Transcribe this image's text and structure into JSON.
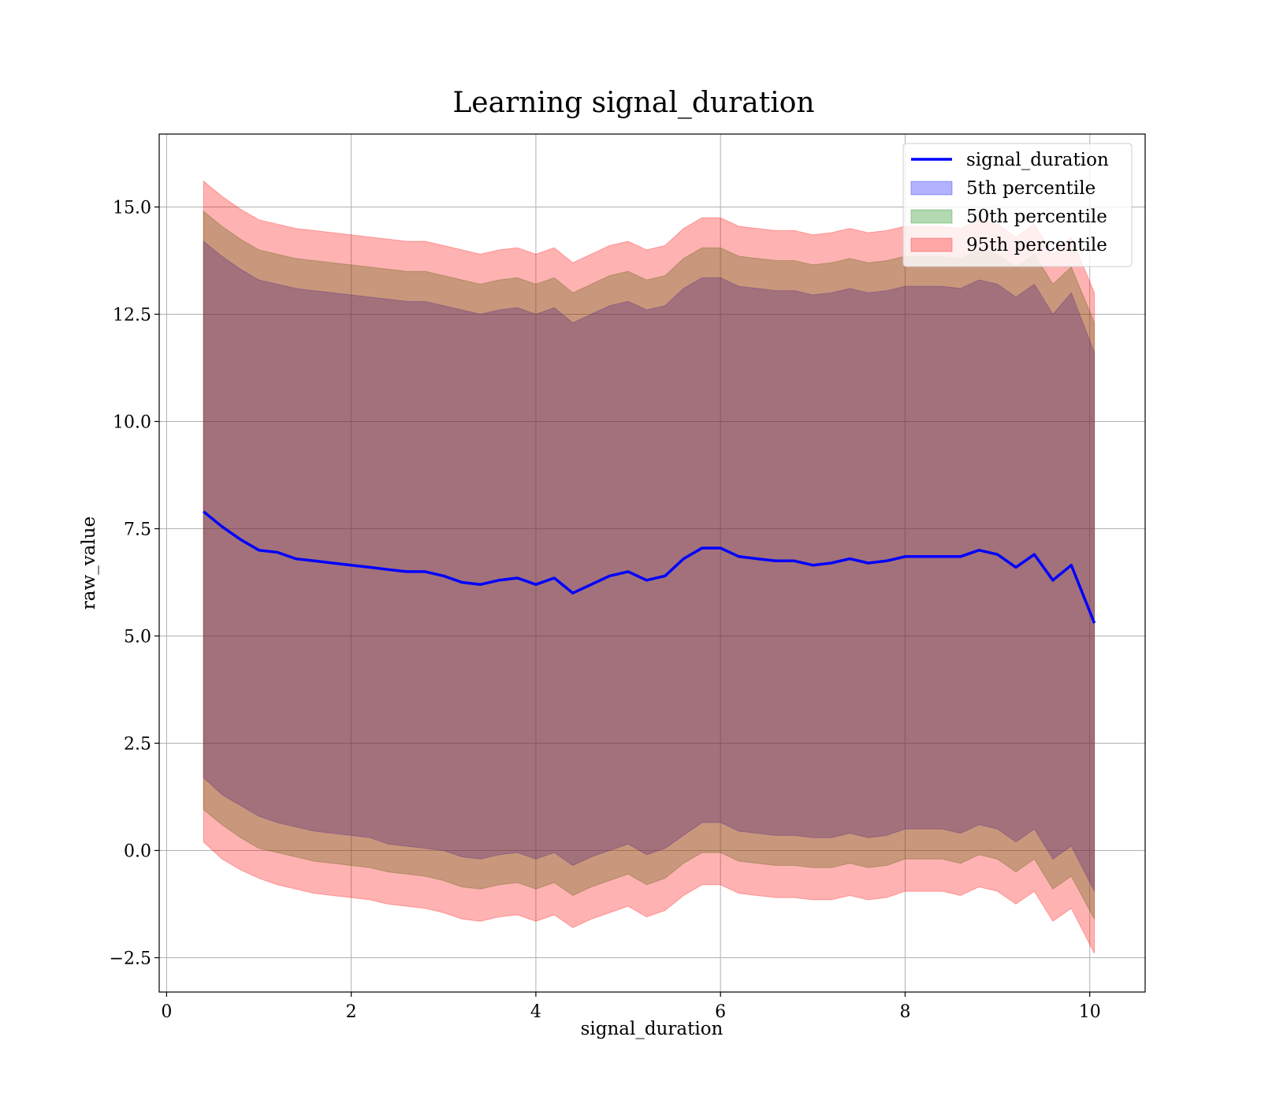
{
  "chart_data": {
    "type": "area",
    "title": "Learning signal_duration",
    "xlabel": "signal_duration",
    "ylabel": "raw_value",
    "xlim": [
      -0.08,
      10.6
    ],
    "ylim": [
      -3.3,
      16.7
    ],
    "grid": true,
    "legend_position": "top-right",
    "x_ticks": [
      {
        "value": 0,
        "label": "0"
      },
      {
        "value": 2,
        "label": "2"
      },
      {
        "value": 4,
        "label": "4"
      },
      {
        "value": 6,
        "label": "6"
      },
      {
        "value": 8,
        "label": "8"
      },
      {
        "value": 10,
        "label": "10"
      }
    ],
    "y_ticks": [
      {
        "value": -2.5,
        "label": "−2.5"
      },
      {
        "value": 0,
        "label": "0.0"
      },
      {
        "value": 2.5,
        "label": "2.5"
      },
      {
        "value": 5,
        "label": "5.0"
      },
      {
        "value": 7.5,
        "label": "7.5"
      },
      {
        "value": 10,
        "label": "10.0"
      },
      {
        "value": 12.5,
        "label": "12.5"
      },
      {
        "value": 15,
        "label": "15.0"
      }
    ],
    "x": [
      0.4,
      0.6,
      0.8,
      1.0,
      1.2,
      1.4,
      1.6,
      1.8,
      2.0,
      2.2,
      2.4,
      2.6,
      2.8,
      3.0,
      3.2,
      3.4,
      3.6,
      3.8,
      4.0,
      4.2,
      4.4,
      4.6,
      4.8,
      5.0,
      5.2,
      5.4,
      5.6,
      5.8,
      6.0,
      6.2,
      6.4,
      6.6,
      6.8,
      7.0,
      7.2,
      7.4,
      7.6,
      7.8,
      8.0,
      8.2,
      8.4,
      8.6,
      8.8,
      9.0,
      9.2,
      9.4,
      9.6,
      9.8,
      10.05
    ],
    "series": [
      {
        "name": "signal_duration",
        "kind": "line",
        "color": "#0000ff",
        "values": [
          7.9,
          7.55,
          7.25,
          7.0,
          6.95,
          6.8,
          6.75,
          6.7,
          6.65,
          6.6,
          6.55,
          6.5,
          6.5,
          6.4,
          6.25,
          6.2,
          6.3,
          6.35,
          6.2,
          6.35,
          6.0,
          6.2,
          6.4,
          6.5,
          6.3,
          6.4,
          6.8,
          7.05,
          7.05,
          6.85,
          6.8,
          6.75,
          6.75,
          6.65,
          6.7,
          6.8,
          6.7,
          6.75,
          6.85,
          6.85,
          6.85,
          6.85,
          7.0,
          6.9,
          6.6,
          6.9,
          6.3,
          6.65,
          5.3
        ]
      },
      {
        "name": "5th percentile",
        "kind": "band",
        "color": "#0000ff",
        "lower": [
          1.7,
          1.3,
          1.05,
          0.8,
          0.65,
          0.55,
          0.45,
          0.4,
          0.35,
          0.3,
          0.15,
          0.1,
          0.05,
          0.0,
          -0.15,
          -0.2,
          -0.1,
          -0.05,
          -0.2,
          -0.05,
          -0.35,
          -0.15,
          0.0,
          0.15,
          -0.1,
          0.05,
          0.35,
          0.65,
          0.65,
          0.45,
          0.4,
          0.35,
          0.35,
          0.3,
          0.3,
          0.4,
          0.3,
          0.35,
          0.5,
          0.5,
          0.5,
          0.4,
          0.6,
          0.5,
          0.2,
          0.5,
          -0.2,
          0.1,
          -0.95
        ],
        "upper": [
          14.2,
          13.85,
          13.55,
          13.3,
          13.2,
          13.1,
          13.05,
          13.0,
          12.95,
          12.9,
          12.85,
          12.8,
          12.8,
          12.7,
          12.6,
          12.5,
          12.6,
          12.65,
          12.5,
          12.65,
          12.3,
          12.5,
          12.7,
          12.8,
          12.6,
          12.7,
          13.1,
          13.35,
          13.35,
          13.15,
          13.1,
          13.05,
          13.05,
          12.95,
          13.0,
          13.1,
          13.0,
          13.05,
          13.15,
          13.15,
          13.15,
          13.1,
          13.3,
          13.2,
          12.9,
          13.2,
          12.5,
          13.0,
          11.6
        ]
      },
      {
        "name": "50th percentile",
        "kind": "band",
        "color": "#008000",
        "lower": [
          0.95,
          0.6,
          0.3,
          0.05,
          -0.05,
          -0.15,
          -0.25,
          -0.3,
          -0.35,
          -0.4,
          -0.5,
          -0.55,
          -0.6,
          -0.7,
          -0.85,
          -0.9,
          -0.8,
          -0.75,
          -0.9,
          -0.75,
          -1.05,
          -0.85,
          -0.7,
          -0.55,
          -0.8,
          -0.65,
          -0.3,
          -0.05,
          -0.05,
          -0.25,
          -0.3,
          -0.35,
          -0.35,
          -0.4,
          -0.4,
          -0.3,
          -0.4,
          -0.35,
          -0.2,
          -0.2,
          -0.2,
          -0.3,
          -0.1,
          -0.2,
          -0.5,
          -0.2,
          -0.9,
          -0.6,
          -1.6
        ],
        "upper": [
          14.9,
          14.55,
          14.25,
          14.0,
          13.9,
          13.8,
          13.75,
          13.7,
          13.65,
          13.6,
          13.55,
          13.5,
          13.5,
          13.4,
          13.3,
          13.2,
          13.3,
          13.35,
          13.2,
          13.35,
          13.0,
          13.2,
          13.4,
          13.5,
          13.3,
          13.4,
          13.8,
          14.05,
          14.05,
          13.85,
          13.8,
          13.75,
          13.75,
          13.65,
          13.7,
          13.8,
          13.7,
          13.75,
          13.85,
          13.85,
          13.85,
          13.8,
          14.0,
          13.9,
          13.6,
          13.9,
          13.2,
          13.6,
          12.3
        ]
      },
      {
        "name": "95th percentile",
        "kind": "band",
        "color": "#ff0000",
        "lower": [
          0.2,
          -0.2,
          -0.45,
          -0.65,
          -0.8,
          -0.9,
          -1.0,
          -1.05,
          -1.1,
          -1.15,
          -1.25,
          -1.3,
          -1.35,
          -1.45,
          -1.6,
          -1.65,
          -1.55,
          -1.5,
          -1.65,
          -1.5,
          -1.8,
          -1.6,
          -1.45,
          -1.3,
          -1.55,
          -1.4,
          -1.05,
          -0.8,
          -0.8,
          -1.0,
          -1.05,
          -1.1,
          -1.1,
          -1.15,
          -1.15,
          -1.05,
          -1.15,
          -1.1,
          -0.95,
          -0.95,
          -0.95,
          -1.05,
          -0.85,
          -0.95,
          -1.25,
          -0.95,
          -1.65,
          -1.35,
          -2.4
        ],
        "upper": [
          15.6,
          15.25,
          14.95,
          14.7,
          14.6,
          14.5,
          14.45,
          14.4,
          14.35,
          14.3,
          14.25,
          14.2,
          14.2,
          14.1,
          14.0,
          13.9,
          14.0,
          14.05,
          13.9,
          14.05,
          13.7,
          13.9,
          14.1,
          14.2,
          14.0,
          14.1,
          14.5,
          14.75,
          14.75,
          14.55,
          14.5,
          14.45,
          14.45,
          14.35,
          14.4,
          14.5,
          14.4,
          14.45,
          14.55,
          14.55,
          14.55,
          14.5,
          14.7,
          14.6,
          14.3,
          14.6,
          13.9,
          14.3,
          13.0
        ]
      }
    ]
  }
}
